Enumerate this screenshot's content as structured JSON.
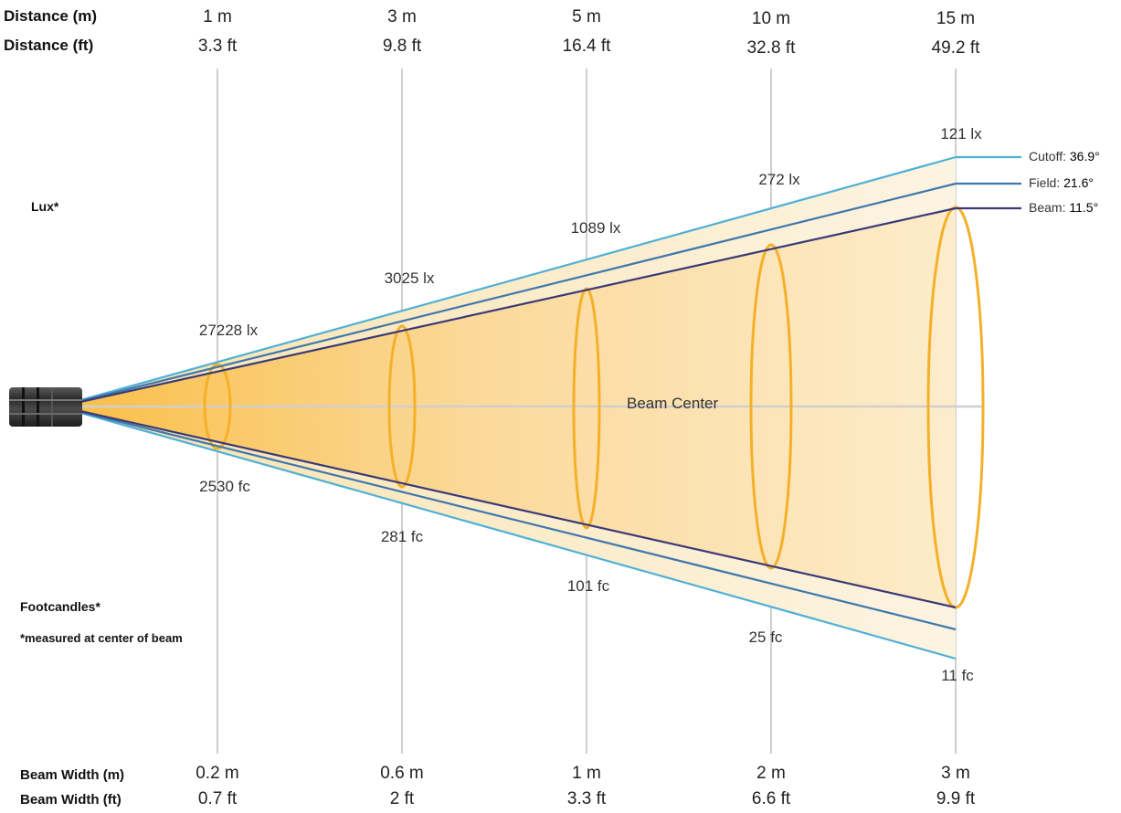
{
  "header": {
    "distance_m_label": "Distance (m)",
    "distance_ft_label": "Distance (ft)"
  },
  "side_labels": {
    "lux": "Lux*",
    "footcandles": "Footcandles*",
    "note": "*measured at center of beam",
    "beam_center": "Beam Center"
  },
  "footer": {
    "beam_width_m_label": "Beam Width (m)",
    "beam_width_ft_label": "Beam Width (ft)"
  },
  "columns": [
    {
      "distance_m": "1 m",
      "distance_ft": "3.3 ft",
      "lux": "27228 lx",
      "fc": "2530 fc",
      "width_m": "0.2 m",
      "width_ft": "0.7 ft"
    },
    {
      "distance_m": "3 m",
      "distance_ft": "9.8 ft",
      "lux": "3025 lx",
      "fc": "281 fc",
      "width_m": "0.6 m",
      "width_ft": "2 ft"
    },
    {
      "distance_m": "5 m",
      "distance_ft": "16.4 ft",
      "lux": "1089 lx",
      "fc": "101 fc",
      "width_m": "1 m",
      "width_ft": "3.3 ft"
    },
    {
      "distance_m": "10 m",
      "distance_ft": "32.8 ft",
      "lux": "272 lx",
      "fc": "25 fc",
      "width_m": "2 m",
      "width_ft": "6.6 ft"
    },
    {
      "distance_m": "15 m",
      "distance_ft": "49.2 ft",
      "lux": "121 lx",
      "fc": "11 fc",
      "width_m": "3 m",
      "width_ft": "9.9 ft"
    }
  ],
  "angles": {
    "cutoff": {
      "label": "Cutoff:",
      "value": "36.9°"
    },
    "field": {
      "label": "Field:",
      "value": "21.6°"
    },
    "beam": {
      "label": "Beam:",
      "value": "11.5°"
    }
  },
  "colors": {
    "cutoff_line": "#4fb0d6",
    "field_line": "#3f77ad",
    "beam_line": "#3a3a78",
    "ellipse": "#f5b02a",
    "beam_fill": "#f9c86a",
    "outer_fill": "#fbf1dc",
    "grid_line": "#cfcfcf"
  }
}
